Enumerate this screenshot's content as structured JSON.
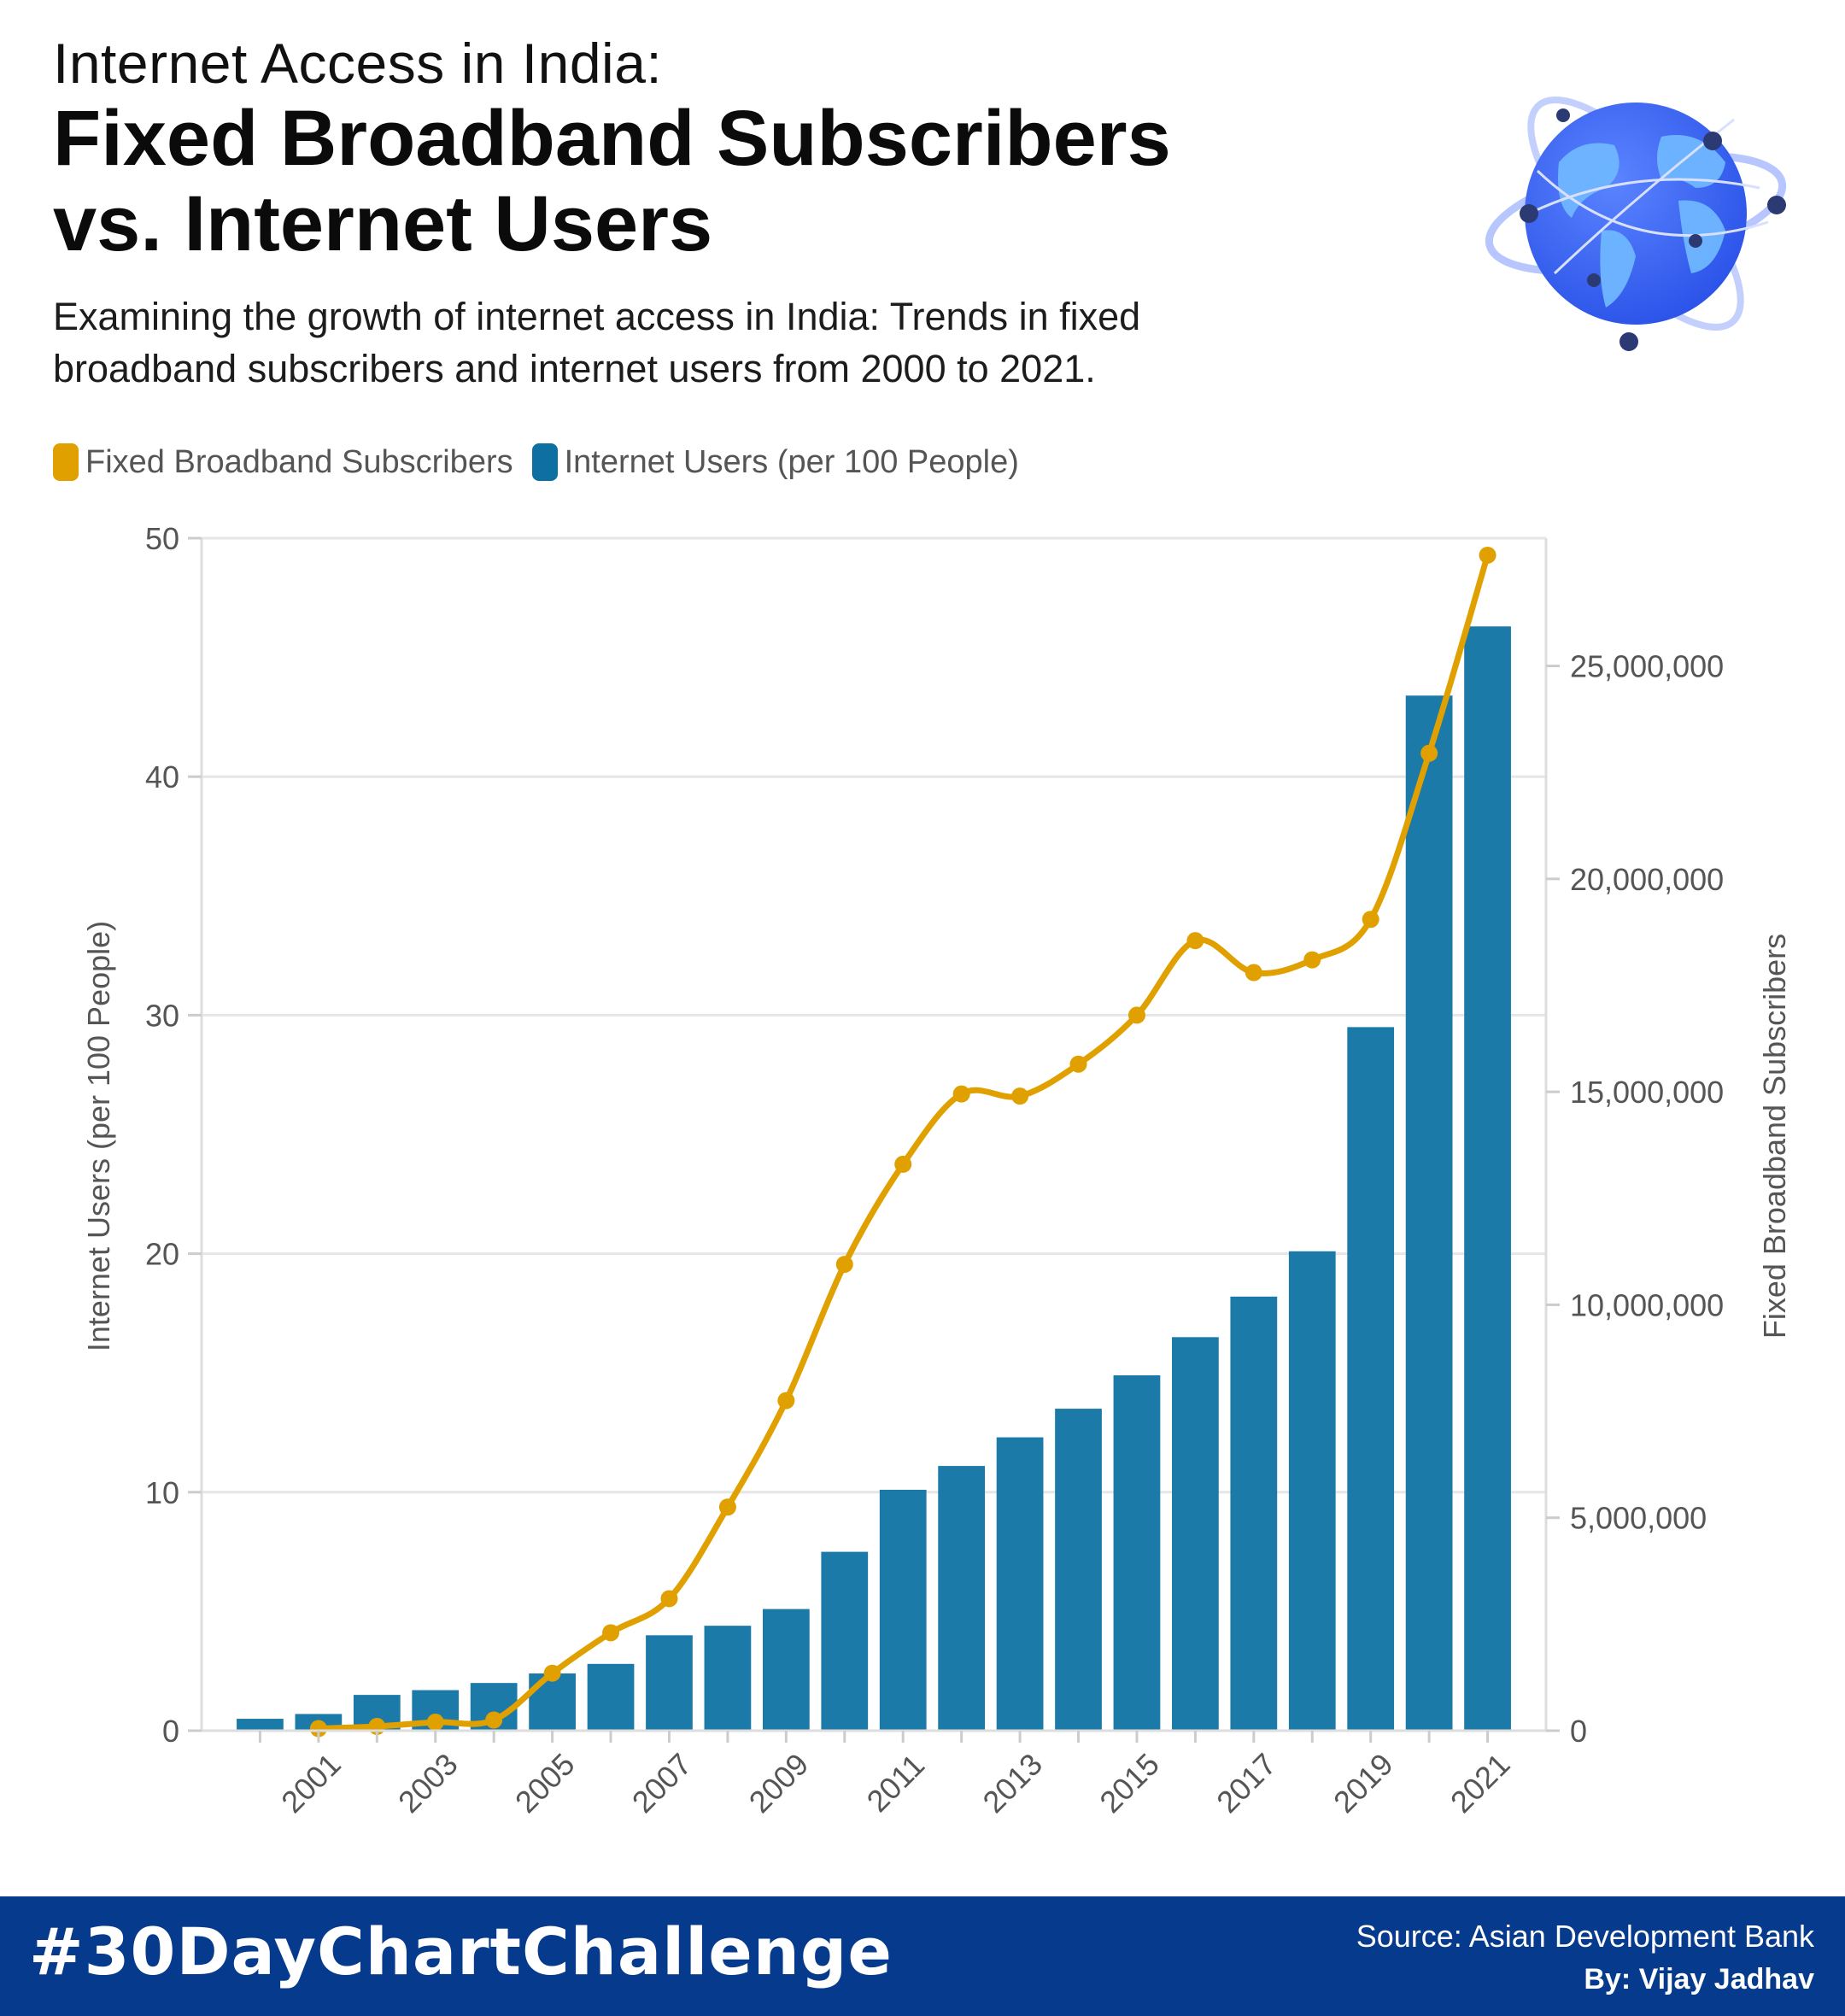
{
  "header": {
    "kicker": "Internet Access in India:",
    "title_line1": "Fixed Broadband Subscribers",
    "title_line2": "vs. Internet Users",
    "subtitle_line1": "Examining the growth of internet access in India: Trends in fixed",
    "subtitle_line2": "broadband subscribers and internet users from 2000 to 2021."
  },
  "legend": {
    "items": [
      {
        "label": "Fixed Broadband Subscribers",
        "color": "#e0a000"
      },
      {
        "label": "Internet Users (per 100 People)",
        "color": "#0e6fa3"
      }
    ]
  },
  "chart_data": {
    "type": "bar",
    "x": [
      2000,
      2001,
      2002,
      2003,
      2004,
      2005,
      2006,
      2007,
      2008,
      2009,
      2010,
      2011,
      2012,
      2013,
      2014,
      2015,
      2016,
      2017,
      2018,
      2019,
      2020,
      2021
    ],
    "x_tick_labels": [
      "2001",
      "2003",
      "2005",
      "2007",
      "2009",
      "2011",
      "2013",
      "2015",
      "2017",
      "2019",
      "2021"
    ],
    "series": [
      {
        "name": "Internet Users (per 100 People)",
        "chart_type": "bar",
        "axis": "left",
        "color": "#1b7aa8",
        "values": [
          0.5,
          0.7,
          1.5,
          1.7,
          2.0,
          2.4,
          2.8,
          4.0,
          4.4,
          5.1,
          7.5,
          10.1,
          11.1,
          12.3,
          13.5,
          14.9,
          16.5,
          18.2,
          20.1,
          29.5,
          43.4,
          46.3
        ]
      },
      {
        "name": "Fixed Broadband Subscribers",
        "chart_type": "line",
        "axis": "right",
        "color": "#e0a000",
        "x": [
          2001,
          2002,
          2003,
          2004,
          2005,
          2006,
          2007,
          2008,
          2009,
          2010,
          2011,
          2012,
          2013,
          2014,
          2015,
          2016,
          2017,
          2018,
          2019,
          2020,
          2021
        ],
        "values": [
          50000,
          100000,
          200000,
          250000,
          1350000,
          2300000,
          3100000,
          5250000,
          7750000,
          10950000,
          13300000,
          14950000,
          14900000,
          15650000,
          16800000,
          18550000,
          17800000,
          18100000,
          19050000,
          22950000,
          27600000
        ]
      }
    ],
    "y_left": {
      "label": "Internet Users (per 100 People)",
      "range": [
        0,
        50
      ],
      "ticks": [
        0,
        10,
        20,
        30,
        40,
        50
      ],
      "tick_labels": [
        "0",
        "10",
        "20",
        "30",
        "40",
        "50"
      ]
    },
    "y_right": {
      "label": "Fixed Broadband Subscribers",
      "range": [
        0,
        28000000
      ],
      "ticks": [
        0,
        5000000,
        10000000,
        15000000,
        20000000,
        25000000
      ],
      "tick_labels": [
        "0",
        "5,000,000",
        "10,000,000",
        "15,000,000",
        "20,000,000",
        "25,000,000"
      ]
    },
    "grid": true,
    "legend_position": "top-left"
  },
  "footer": {
    "hashtag": "#30DayChartChallenge",
    "source": "Source: Asian Development Bank",
    "byline": "By: Vijay Jadhav"
  }
}
